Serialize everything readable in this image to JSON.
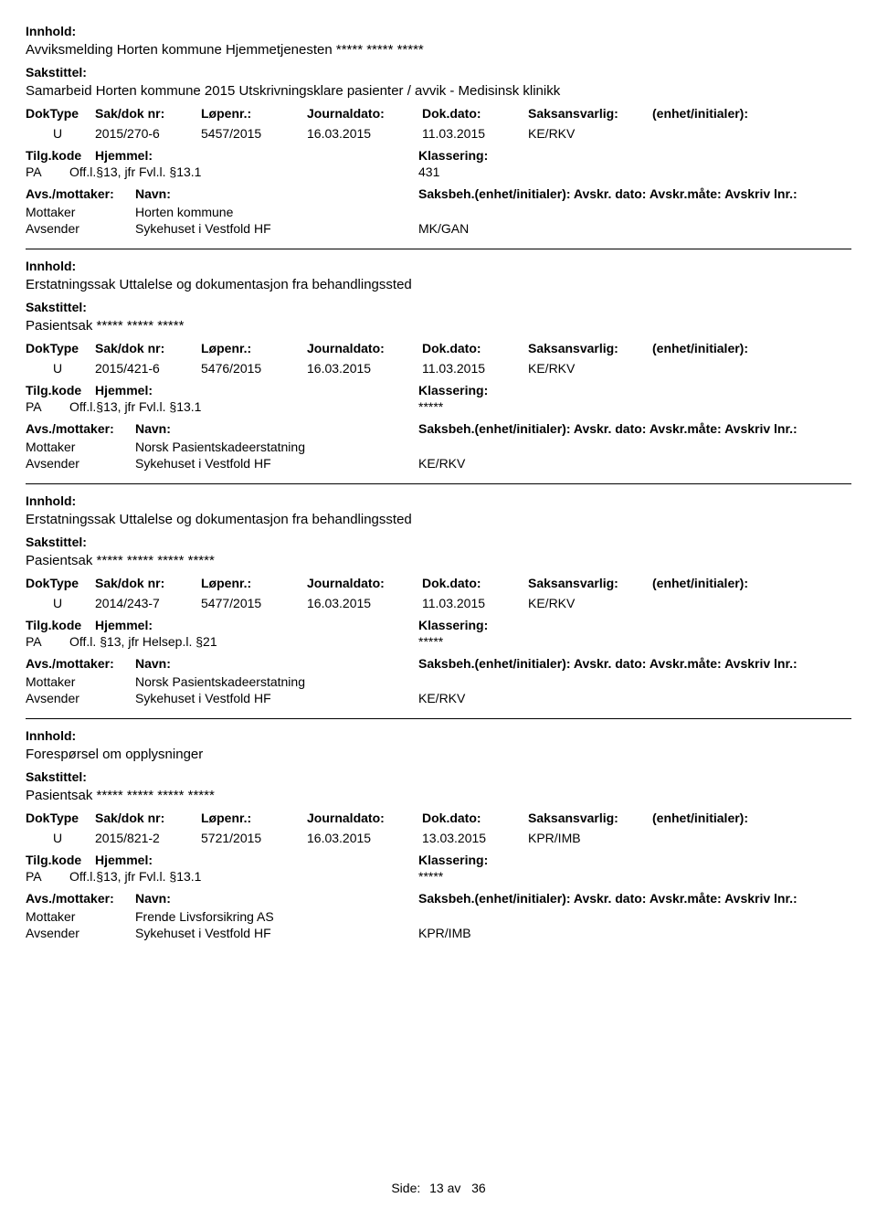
{
  "labels": {
    "innhold": "Innhold:",
    "sakstittel": "Sakstittel:",
    "doktype": "DokType",
    "sakdok": "Sak/dok nr:",
    "lopenr": "Løpenr.:",
    "journaldato": "Journaldato:",
    "dokdato": "Dok.dato:",
    "saksansvarlig": "Saksansvarlig:",
    "enhet": "(enhet/initialer):",
    "tilgkode": "Tilg.kode",
    "hjemmel": "Hjemmel:",
    "klassering": "Klassering:",
    "avsmottaker": "Avs./mottaker:",
    "navn": "Navn:",
    "saksbeh": "Saksbeh.(enhet/initialer): Avskr. dato:  Avskr.måte: Avskriv lnr.:",
    "side": "Side:",
    "mottaker": "Mottaker",
    "avsender": "Avsender"
  },
  "footer": {
    "page": "13",
    "sep": "av",
    "total": "36"
  },
  "records": [
    {
      "innhold": "Avviksmelding Horten kommune Hjemmetjenesten ***** ***** *****",
      "sakstittel": "Samarbeid Horten kommune 2015 Utskrivningsklare pasienter / avvik - Medisinsk klinikk",
      "doktype": "U",
      "sakdok": "2015/270-6",
      "lopenr": "5457/2015",
      "journaldato": "16.03.2015",
      "dokdato": "11.03.2015",
      "saksansvarlig": "KE/RKV",
      "tilgkode": "PA",
      "hjemmel": "Off.l.§13, jfr Fvl.l. §13.1",
      "klassering": "431",
      "mottaker": "Horten kommune",
      "avsender": "Sykehuset i Vestfold HF",
      "saksbehCode": "MK/GAN"
    },
    {
      "innhold": "Erstatningssak Uttalelse og dokumentasjon fra behandlingssted",
      "sakstittel": "Pasientsak ***** ***** *****",
      "doktype": "U",
      "sakdok": "2015/421-6",
      "lopenr": "5476/2015",
      "journaldato": "16.03.2015",
      "dokdato": "11.03.2015",
      "saksansvarlig": "KE/RKV",
      "tilgkode": "PA",
      "hjemmel": "Off.l.§13, jfr Fvl.l. §13.1",
      "klassering": "*****",
      "mottaker": "Norsk Pasientskadeerstatning",
      "avsender": "Sykehuset i Vestfold HF",
      "saksbehCode": "KE/RKV"
    },
    {
      "innhold": "Erstatningssak Uttalelse og dokumentasjon fra behandlingssted",
      "sakstittel": "Pasientsak ***** ***** ***** *****",
      "doktype": "U",
      "sakdok": "2014/243-7",
      "lopenr": "5477/2015",
      "journaldato": "16.03.2015",
      "dokdato": "11.03.2015",
      "saksansvarlig": "KE/RKV",
      "tilgkode": "PA",
      "hjemmel": "Off.l. §13, jfr Helsep.l. §21",
      "klassering": "*****",
      "mottaker": "Norsk Pasientskadeerstatning",
      "avsender": "Sykehuset i Vestfold HF",
      "saksbehCode": "KE/RKV"
    },
    {
      "innhold": "Forespørsel om opplysninger",
      "sakstittel": "Pasientsak ***** ***** ***** *****",
      "doktype": "U",
      "sakdok": "2015/821-2",
      "lopenr": "5721/2015",
      "journaldato": "16.03.2015",
      "dokdato": "13.03.2015",
      "saksansvarlig": "KPR/IMB",
      "tilgkode": "PA",
      "hjemmel": "Off.l.§13, jfr Fvl.l. §13.1",
      "klassering": "*****",
      "mottaker": "Frende Livsforsikring AS",
      "avsender": "Sykehuset i Vestfold HF",
      "saksbehCode": "KPR/IMB"
    }
  ]
}
